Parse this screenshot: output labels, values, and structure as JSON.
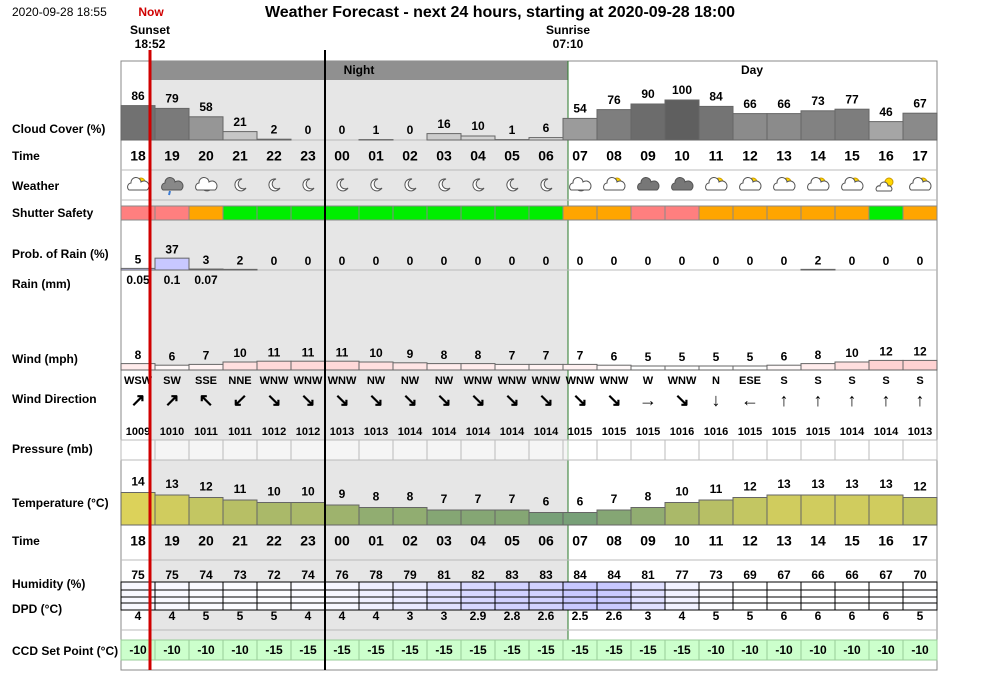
{
  "header": {
    "timestamp": "2020-09-28 18:55",
    "now": "Now",
    "title": "Weather Forecast - next 24 hours, starting at 2020-09-28 18:00",
    "sunset": {
      "label": "Sunset",
      "time": "18:52"
    },
    "sunrise": {
      "label": "Sunrise",
      "time": "07:10"
    },
    "night": "Night",
    "day": "Day"
  },
  "rows": {
    "cloud_cover": {
      "label": "Cloud Cover (%)",
      "values": [
        86,
        79,
        58,
        21,
        2,
        0,
        0,
        1,
        0,
        16,
        10,
        1,
        6,
        54,
        76,
        90,
        100,
        84,
        66,
        66,
        73,
        77,
        46,
        67
      ]
    },
    "time": {
      "label": "Time",
      "values": [
        "18",
        "19",
        "20",
        "21",
        "22",
        "23",
        "00",
        "01",
        "02",
        "03",
        "04",
        "05",
        "06",
        "07",
        "08",
        "09",
        "10",
        "11",
        "12",
        "13",
        "14",
        "15",
        "16",
        "17"
      ]
    },
    "weather": {
      "label": "Weather"
    },
    "shutter_safety": {
      "label": "Shutter Safety",
      "colors": [
        "#ff7f7f",
        "#ff7f7f",
        "#ffa500",
        "#00ee00",
        "#00ee00",
        "#00ee00",
        "#00ee00",
        "#00ee00",
        "#00ee00",
        "#00ee00",
        "#00ee00",
        "#00ee00",
        "#00ee00",
        "#ffa500",
        "#ffa500",
        "#ff7f7f",
        "#ff7f7f",
        "#ffa500",
        "#ffa500",
        "#ffa500",
        "#ffa500",
        "#ffa500",
        "#00ee00",
        "#ffa500"
      ]
    },
    "rain_probability": {
      "label": "Prob. of Rain (%)",
      "values": [
        5,
        37,
        3,
        2,
        0,
        0,
        0,
        0,
        0,
        0,
        0,
        0,
        0,
        0,
        0,
        0,
        0,
        0,
        0,
        0,
        2,
        0,
        0,
        0
      ]
    },
    "rain": {
      "label": "Rain (mm)",
      "values": [
        0.05,
        0.1,
        0.07,
        null,
        null,
        null,
        null,
        null,
        null,
        null,
        null,
        null,
        null,
        null,
        null,
        null,
        null,
        null,
        null,
        null,
        null,
        null,
        null,
        null
      ]
    },
    "wind": {
      "label": "Wind (mph)",
      "values": [
        8,
        6,
        7,
        10,
        11,
        11,
        11,
        10,
        9,
        8,
        8,
        7,
        7,
        7,
        6,
        5,
        5,
        5,
        5,
        6,
        8,
        10,
        12,
        12
      ]
    },
    "wind_direction": {
      "label": "Wind Direction",
      "values": [
        "WSW",
        "SW",
        "SSE",
        "NNE",
        "WNW",
        "WNW",
        "WNW",
        "NW",
        "NW",
        "NW",
        "WNW",
        "WNW",
        "WNW",
        "WNW",
        "WNW",
        "W",
        "WNW",
        "N",
        "ESE",
        "S",
        "S",
        "S",
        "S",
        "S"
      ],
      "arrows": [
        "↗",
        "↗",
        "↖",
        "↙",
        "↘",
        "↘",
        "↘",
        "↘",
        "↘",
        "↘",
        "↘",
        "↘",
        "↘",
        "↘",
        "↘",
        "→",
        "↘",
        "↓",
        "←",
        "↑",
        "↑",
        "↑",
        "↑",
        "↑"
      ]
    },
    "pressure": {
      "label": "Pressure (mb)",
      "values": [
        1009,
        1010,
        1011,
        1011,
        1012,
        1012,
        1013,
        1013,
        1014,
        1014,
        1014,
        1014,
        1014,
        1015,
        1015,
        1015,
        1016,
        1016,
        1015,
        1015,
        1015,
        1014,
        1014,
        1013
      ]
    },
    "temperature": {
      "label": "Temperature (°C)",
      "values": [
        14,
        13,
        12,
        11,
        10,
        10,
        9,
        8,
        8,
        7,
        7,
        7,
        6,
        6,
        7,
        8,
        10,
        11,
        12,
        13,
        13,
        13,
        13,
        12
      ]
    },
    "humidity": {
      "label": "Humidity (%)",
      "values": [
        75,
        75,
        74,
        73,
        72,
        74,
        76,
        78,
        79,
        81,
        82,
        83,
        83,
        84,
        84,
        81,
        77,
        73,
        69,
        67,
        66,
        66,
        67,
        70
      ]
    },
    "dpd": {
      "label": "DPD (°C)",
      "values": [
        4,
        4,
        5,
        5,
        5,
        4,
        4,
        4,
        3,
        3,
        2.9,
        2.8,
        2.6,
        2.5,
        2.6,
        3,
        4,
        5,
        5,
        6,
        6,
        6,
        6,
        5
      ]
    },
    "ccd_set_point": {
      "label": "CCD Set Point (°C)",
      "values": [
        -10,
        -10,
        -10,
        -10,
        -15,
        -15,
        -15,
        -15,
        -15,
        -15,
        -15,
        -15,
        -15,
        -15,
        -15,
        -15,
        -15,
        -10,
        -10,
        -10,
        -10,
        -10,
        -10,
        -10
      ]
    }
  }
}
